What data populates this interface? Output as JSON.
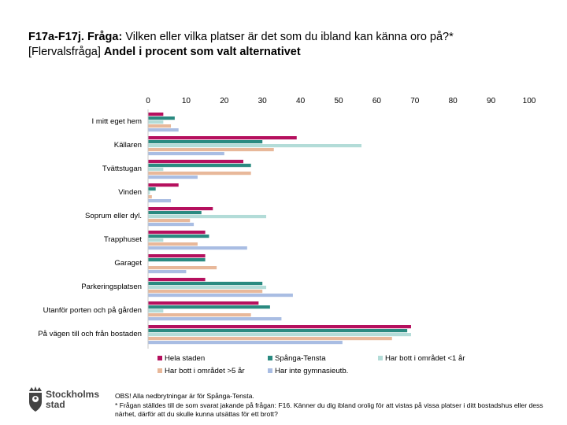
{
  "header": {
    "code": "F17a-F17j.",
    "question_label": "Fråga:",
    "question_text": "Vilken eller vilka platser är det som du ibland kan känna oro på?*",
    "multi_label": "[Flervalsfråga]",
    "subtitle": "Andel i procent som valt alternativet"
  },
  "colors": {
    "hela_staden": "#b5105e",
    "spanga_tensta": "#2a8a80",
    "omradet_lt1": "#b3dcd8",
    "omradet_gt5": "#e8b89a",
    "ej_gymnasie": "#a9bde3"
  },
  "chart_data": {
    "type": "bar",
    "orientation": "horizontal",
    "xlim": [
      0,
      100
    ],
    "x_ticks": [
      "0",
      "10",
      "20",
      "30",
      "40",
      "50",
      "60",
      "70",
      "80",
      "90",
      "100"
    ],
    "categories": [
      "I mitt eget hem",
      "Källaren",
      "Tvättstugan",
      "Vinden",
      "Soprum eller dyl.",
      "Trapphuset",
      "Garaget",
      "Parkeringsplatsen",
      "Utanför porten och på gården",
      "På vägen till och från bostaden"
    ],
    "series": [
      {
        "name": "Hela staden",
        "color_key": "hela_staden",
        "values": [
          4,
          39,
          25,
          8,
          17,
          15,
          15,
          15,
          29,
          69
        ]
      },
      {
        "name": "Spånga-Tensta",
        "color_key": "spanga_tensta",
        "values": [
          7,
          30,
          27,
          2,
          14,
          16,
          15,
          30,
          32,
          68
        ]
      },
      {
        "name": "Har bott i området <1 år",
        "color_key": "omradet_lt1",
        "values": [
          4,
          56,
          4,
          0.5,
          31,
          4,
          0,
          31,
          4,
          69
        ]
      },
      {
        "name": "Har bott i området >5 år",
        "color_key": "omradet_gt5",
        "values": [
          6,
          33,
          27,
          1,
          11,
          13,
          18,
          30,
          27,
          64
        ]
      },
      {
        "name": "Har inte gymnasieutb.",
        "color_key": "ej_gymnasie",
        "values": [
          8,
          20,
          13,
          6,
          12,
          26,
          10,
          38,
          35,
          51
        ]
      }
    ],
    "legend": [
      "Hela staden",
      "Spånga-Tensta",
      "Har bott i området <1 år",
      "Har bott i området >5 år",
      "Har inte gymnasieutb."
    ],
    "legend_position": "bottom",
    "grid": false
  },
  "logo": {
    "line1": "Stockholms",
    "line2": "stad"
  },
  "footnote": {
    "line1": "OBS! Alla nedbrytningar är för Spånga-Tensta.",
    "line2": "* Frågan ställdes till de som svarat jakande på frågan: F16. Känner du dig ibland orolig för att vistas på vissa platser i ditt bostadshus eller dess närhet, därför att du skulle kunna utsättas för ett brott?"
  }
}
